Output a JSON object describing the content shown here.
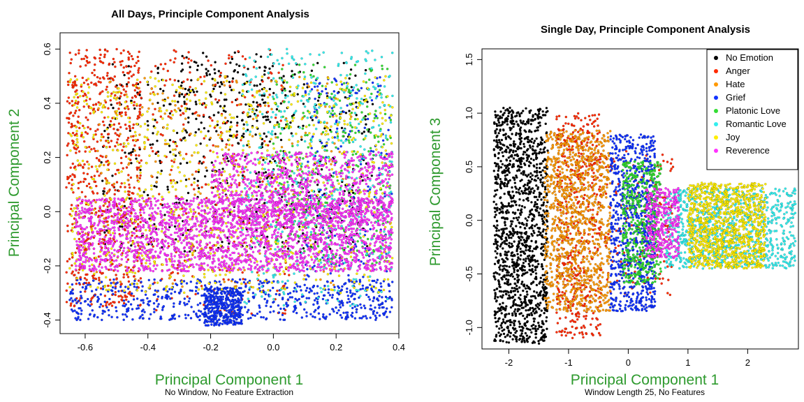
{
  "chart_data": [
    {
      "type": "scatter",
      "title": "All Days, Principle Component Analysis",
      "xlabel": "Principal Component 1",
      "ylabel": "Principal Component 2",
      "subtitle": "No Window, No Feature Extraction",
      "xlim": [
        -0.68,
        0.4
      ],
      "ylim": [
        -0.45,
        0.66
      ],
      "xticks": [
        "-0.6",
        "-0.4",
        "-0.2",
        "0.0",
        "0.2",
        "0.4"
      ],
      "yticks": [
        "-0.4",
        "-0.2",
        "0.0",
        "0.2",
        "0.4",
        "0.6"
      ],
      "xtick_values": [
        -0.6,
        -0.4,
        -0.2,
        0.0,
        0.2,
        0.4
      ],
      "ytick_values": [
        -0.4,
        -0.2,
        0.0,
        0.2,
        0.4,
        0.6
      ],
      "legend": "none",
      "series": [
        {
          "name": "No Emotion",
          "color": "#000000",
          "clusters": [
            {
              "x": [
                -0.55,
                0.32
              ],
              "y": [
                -0.15,
                0.55
              ],
              "n": 500
            },
            {
              "x": [
                -0.3,
                0.0
              ],
              "y": [
                0.25,
                0.6
              ],
              "n": 120
            }
          ]
        },
        {
          "name": "Anger",
          "color": "#ff2a00",
          "clusters": [
            {
              "x": [
                -0.66,
                -0.42
              ],
              "y": [
                -0.35,
                0.6
              ],
              "n": 700
            },
            {
              "x": [
                -0.4,
                0.05
              ],
              "y": [
                -0.38,
                0.6
              ],
              "n": 300
            }
          ]
        },
        {
          "name": "Hate",
          "color": "#ff9900",
          "clusters": [
            {
              "x": [
                -0.6,
                0.25
              ],
              "y": [
                -0.3,
                0.5
              ],
              "n": 300
            }
          ]
        },
        {
          "name": "Grief",
          "color": "#1133ff",
          "clusters": [
            {
              "x": [
                -0.65,
                0.38
              ],
              "y": [
                -0.4,
                -0.25
              ],
              "n": 600
            },
            {
              "x": [
                -0.22,
                -0.1
              ],
              "y": [
                -0.42,
                -0.28
              ],
              "n": 400
            },
            {
              "x": [
                0.1,
                0.38
              ],
              "y": [
                -0.4,
                0.5
              ],
              "n": 250
            }
          ]
        },
        {
          "name": "Platonic Love",
          "color": "#33dd33",
          "clusters": [
            {
              "x": [
                0.0,
                0.38
              ],
              "y": [
                -0.2,
                0.55
              ],
              "n": 350
            }
          ]
        },
        {
          "name": "Romantic Love",
          "color": "#33eeee",
          "clusters": [
            {
              "x": [
                -0.1,
                0.38
              ],
              "y": [
                -0.35,
                0.6
              ],
              "n": 500
            }
          ]
        },
        {
          "name": "Joy",
          "color": "#ffee00",
          "clusters": [
            {
              "x": [
                -0.65,
                0.38
              ],
              "y": [
                -0.3,
                0.5
              ],
              "n": 900
            }
          ]
        },
        {
          "name": "Reverence",
          "color": "#ff33ff",
          "clusters": [
            {
              "x": [
                -0.63,
                0.38
              ],
              "y": [
                -0.22,
                0.05
              ],
              "n": 2200
            },
            {
              "x": [
                -0.2,
                0.38
              ],
              "y": [
                -0.05,
                0.22
              ],
              "n": 900
            }
          ]
        }
      ]
    },
    {
      "type": "scatter",
      "title": "Single Day, Principle Component Analysis",
      "xlabel": "Principal Component 1",
      "ylabel": "Principal Component 3",
      "subtitle": "Window Length 25, No Features",
      "xlim": [
        -2.45,
        2.85
      ],
      "ylim": [
        -1.2,
        1.6
      ],
      "xticks": [
        "-2",
        "-1",
        "0",
        "1",
        "2"
      ],
      "yticks": [
        "-1.0",
        "-0.5",
        "0.0",
        "0.5",
        "1.0",
        "1.5"
      ],
      "xtick_values": [
        -2,
        -1,
        0,
        1,
        2
      ],
      "ytick_values": [
        -1.0,
        -0.5,
        0.0,
        0.5,
        1.0,
        1.5
      ],
      "legend": "top-right",
      "series": [
        {
          "name": "No Emotion",
          "color": "#000000",
          "clusters": [
            {
              "x": [
                -2.25,
                -1.35
              ],
              "y": [
                -1.15,
                1.05
              ],
              "n": 1400
            }
          ]
        },
        {
          "name": "Anger",
          "color": "#ff2a00",
          "clusters": [
            {
              "x": [
                -1.2,
                -0.45
              ],
              "y": [
                -1.1,
                1.0
              ],
              "n": 500
            },
            {
              "x": [
                -0.4,
                0.75
              ],
              "y": [
                -0.7,
                0.7
              ],
              "n": 150
            }
          ]
        },
        {
          "name": "Hate",
          "color": "#ff9900",
          "clusters": [
            {
              "x": [
                -1.4,
                -0.3
              ],
              "y": [
                -0.85,
                0.85
              ],
              "n": 1100
            }
          ]
        },
        {
          "name": "Grief",
          "color": "#1133ff",
          "clusters": [
            {
              "x": [
                -0.3,
                0.45
              ],
              "y": [
                -0.85,
                0.8
              ],
              "n": 800
            }
          ]
        },
        {
          "name": "Platonic Love",
          "color": "#33dd33",
          "clusters": [
            {
              "x": [
                -0.1,
                0.55
              ],
              "y": [
                -0.6,
                0.55
              ],
              "n": 500
            }
          ]
        },
        {
          "name": "Romantic Love",
          "color": "#33eeee",
          "clusters": [
            {
              "x": [
                0.6,
                2.8
              ],
              "y": [
                -0.45,
                0.3
              ],
              "n": 900
            }
          ]
        },
        {
          "name": "Joy",
          "color": "#ffee00",
          "clusters": [
            {
              "x": [
                1.0,
                2.3
              ],
              "y": [
                -0.45,
                0.35
              ],
              "n": 1100
            }
          ]
        },
        {
          "name": "Reverence",
          "color": "#ff33ff",
          "clusters": [
            {
              "x": [
                0.3,
                0.85
              ],
              "y": [
                -0.35,
                0.3
              ],
              "n": 350
            }
          ]
        }
      ]
    }
  ]
}
